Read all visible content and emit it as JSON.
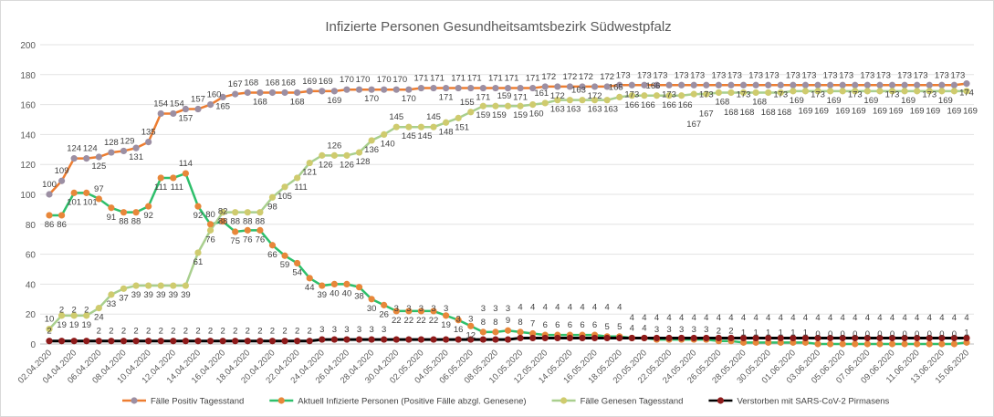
{
  "chart_data": {
    "type": "line",
    "title": "Infizierte Personen Gesundheitsamtsbezirk Südwestpfalz",
    "xlabel": "",
    "ylabel": "",
    "ylim": [
      0,
      200
    ],
    "yticks": [
      "0",
      "20",
      "40",
      "60",
      "80",
      "100",
      "120",
      "140",
      "160",
      "180",
      "200"
    ],
    "grid": true,
    "legend_position": "bottom",
    "start_date": "02.04.2020",
    "x_tick_labels": [
      "02.04.2020",
      "04.04.2020",
      "06.04.2020",
      "08.04.2020",
      "10.04.2020",
      "12.04.2020",
      "14.04.2020",
      "16.04.2020",
      "18.04.2020",
      "20.04.2020",
      "22.04.2020",
      "24.04.2020",
      "26.04.2020",
      "28.04.2020",
      "30.04.2020",
      "02.05.2020",
      "04.05.2020",
      "06.05.2020",
      "08.05.2020",
      "10.05.2020",
      "12.05.2020",
      "14.05.2020",
      "16.05.2020",
      "18.05.2020",
      "20.05.2020",
      "22.05.2020",
      "24.05.2020",
      "26.05.2020",
      "28.05.2020",
      "30.05.2020",
      "01.06.2020",
      "03.06.2020",
      "05.06.2020",
      "07.06.2020",
      "09.06.2020",
      "11.06.2020",
      "13.06.2020",
      "15.06.2020"
    ],
    "series": [
      {
        "name": "Fälle Positiv Tagesstand",
        "line": "#ED7D31",
        "marker": "#9C8FA3",
        "values": [
          100,
          109,
          124,
          124,
          125,
          128,
          129,
          131,
          135,
          154,
          154,
          157,
          157,
          160,
          165,
          167,
          168,
          168,
          168,
          168,
          168,
          169,
          169,
          169,
          170,
          170,
          170,
          170,
          170,
          170,
          171,
          171,
          171,
          171,
          171,
          171,
          171,
          171,
          171,
          171,
          172,
          172,
          172,
          172,
          172,
          172,
          173,
          173,
          173,
          173,
          173,
          173,
          173,
          173,
          173,
          173,
          173,
          173,
          173,
          173,
          173,
          173,
          173,
          173,
          173,
          173,
          173,
          173,
          173,
          173,
          173,
          173,
          173,
          173,
          174
        ]
      },
      {
        "name": "Aktuell Infizierte Personen (Positive Fälle abzgl. Genesene)",
        "line": "#2EBF6B",
        "marker": "#E8873A",
        "values": [
          86,
          86,
          101,
          101,
          97,
          91,
          88,
          88,
          92,
          111,
          111,
          114,
          92,
          80,
          82,
          75,
          76,
          76,
          66,
          59,
          54,
          44,
          39,
          40,
          40,
          38,
          30,
          26,
          22,
          22,
          22,
          22,
          19,
          16,
          12,
          8,
          8,
          9,
          8,
          7,
          6,
          6,
          6,
          6,
          6,
          5,
          5,
          4,
          4,
          3,
          3,
          3,
          3,
          3,
          2,
          2,
          1,
          1,
          1,
          1,
          1,
          1,
          0,
          0,
          0,
          0,
          0,
          0,
          0,
          0,
          0,
          0,
          0,
          0,
          1
        ]
      },
      {
        "name": "Fälle Genesen Tagesstand",
        "line": "#A9CF8E",
        "marker": "#CFCB6E",
        "values": [
          10,
          19,
          19,
          19,
          24,
          33,
          37,
          39,
          39,
          39,
          39,
          39,
          61,
          76,
          88,
          88,
          88,
          88,
          98,
          105,
          111,
          121,
          126,
          126,
          126,
          128,
          136,
          140,
          145,
          145,
          145,
          145,
          148,
          151,
          155,
          159,
          159,
          159,
          159,
          160,
          161,
          163,
          163,
          163,
          163,
          163,
          165,
          166,
          166,
          166,
          166,
          166,
          167,
          167,
          168,
          168,
          168,
          168,
          168,
          168,
          169,
          169,
          169,
          169,
          169,
          169,
          169,
          169,
          169,
          169,
          169,
          169,
          169,
          169,
          169
        ]
      },
      {
        "name": "Verstorben mit SARS-CoV-2 Pirmasens",
        "line": "#000000",
        "marker": "#8E1B1B",
        "values": [
          2,
          2,
          2,
          2,
          2,
          2,
          2,
          2,
          2,
          2,
          2,
          2,
          2,
          2,
          2,
          2,
          2,
          2,
          2,
          2,
          2,
          2,
          3,
          3,
          3,
          3,
          3,
          3,
          3,
          3,
          3,
          3,
          3,
          3,
          3,
          3,
          3,
          3,
          4,
          4,
          4,
          4,
          4,
          4,
          4,
          4,
          4,
          4,
          4,
          4,
          4,
          4,
          4,
          4,
          4,
          4,
          4,
          4,
          4,
          4,
          4,
          4,
          4,
          4,
          4,
          4,
          4,
          4,
          4,
          4,
          4,
          4,
          4,
          4,
          4
        ]
      }
    ]
  }
}
